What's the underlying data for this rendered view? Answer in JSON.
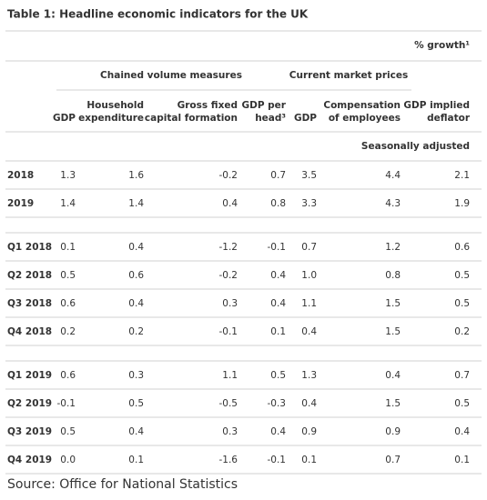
{
  "title": "Table 1: Headline economic indicators for the UK",
  "units": "% growth¹",
  "groups": [
    "Chained volume measures",
    "Current market prices"
  ],
  "columns": [
    [
      "GDP"
    ],
    [
      "Household",
      "expenditure"
    ],
    [
      "Gross fixed",
      "capital formation"
    ],
    [
      "GDP per",
      "head³"
    ],
    [
      "GDP"
    ],
    [
      "Compensation",
      "of employees"
    ],
    [
      "GDP implied",
      "deflator"
    ]
  ],
  "adjustment": "Seasonally adjusted",
  "sections": [
    [
      [
        "2018",
        "1.3",
        "1.6",
        "-0.2",
        "0.7",
        "3.5",
        "4.4",
        "2.1"
      ],
      [
        "2019",
        "1.4",
        "1.4",
        "0.4",
        "0.8",
        "3.3",
        "4.3",
        "1.9"
      ]
    ],
    [
      [
        "Q1 2018",
        "0.1",
        "0.4",
        "-1.2",
        "-0.1",
        "0.7",
        "1.2",
        "0.6"
      ],
      [
        "Q2 2018",
        "0.5",
        "0.6",
        "-0.2",
        "0.4",
        "1.0",
        "0.8",
        "0.5"
      ],
      [
        "Q3 2018",
        "0.6",
        "0.4",
        "0.3",
        "0.4",
        "1.1",
        "1.5",
        "0.5"
      ],
      [
        "Q4 2018",
        "0.2",
        "0.2",
        "-0.1",
        "0.1",
        "0.4",
        "1.5",
        "0.2"
      ]
    ],
    [
      [
        "Q1 2019",
        "0.6",
        "0.3",
        "1.1",
        "0.5",
        "1.3",
        "0.4",
        "0.7"
      ],
      [
        "Q2 2019",
        "-0.1",
        "0.5",
        "-0.5",
        "-0.3",
        "0.4",
        "1.5",
        "0.5"
      ],
      [
        "Q3 2019",
        "0.5",
        "0.4",
        "0.3",
        "0.4",
        "0.9",
        "0.9",
        "0.4"
      ],
      [
        "Q4 2019",
        "0.0",
        "0.1",
        "-1.6",
        "-0.1",
        "0.1",
        "0.7",
        "0.1"
      ]
    ]
  ],
  "source": "Source: Office for National Statistics"
}
